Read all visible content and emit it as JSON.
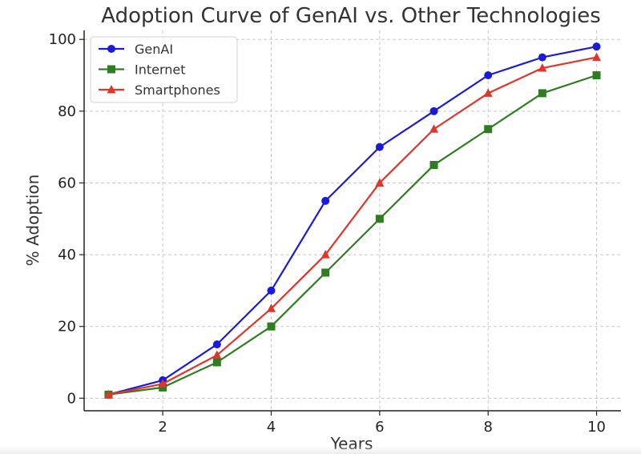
{
  "chart_data": {
    "type": "line",
    "title": "Adoption Curve of GenAI vs. Other Technologies",
    "xlabel": "Years",
    "ylabel": "% Adoption",
    "x": [
      1,
      2,
      3,
      4,
      5,
      6,
      7,
      8,
      9,
      10
    ],
    "xlim": [
      0.55,
      10.45
    ],
    "ylim": [
      -3.5,
      102.5
    ],
    "xticks": [
      2,
      4,
      6,
      8,
      10
    ],
    "yticks": [
      0,
      20,
      40,
      60,
      80,
      100
    ],
    "grid": true,
    "legend_position": "top-left",
    "series": [
      {
        "name": "GenAI",
        "color": "#1a1adb",
        "marker": "circle",
        "values": [
          1,
          5,
          15,
          30,
          55,
          70,
          80,
          90,
          95,
          98
        ]
      },
      {
        "name": "Internet",
        "color": "#2e7d1e",
        "marker": "square",
        "values": [
          1,
          3,
          10,
          20,
          35,
          50,
          65,
          75,
          85,
          90
        ]
      },
      {
        "name": "Smartphones",
        "color": "#e0352b",
        "marker": "triangle",
        "values": [
          1,
          4,
          12,
          25,
          40,
          60,
          75,
          85,
          92,
          95
        ]
      }
    ]
  }
}
